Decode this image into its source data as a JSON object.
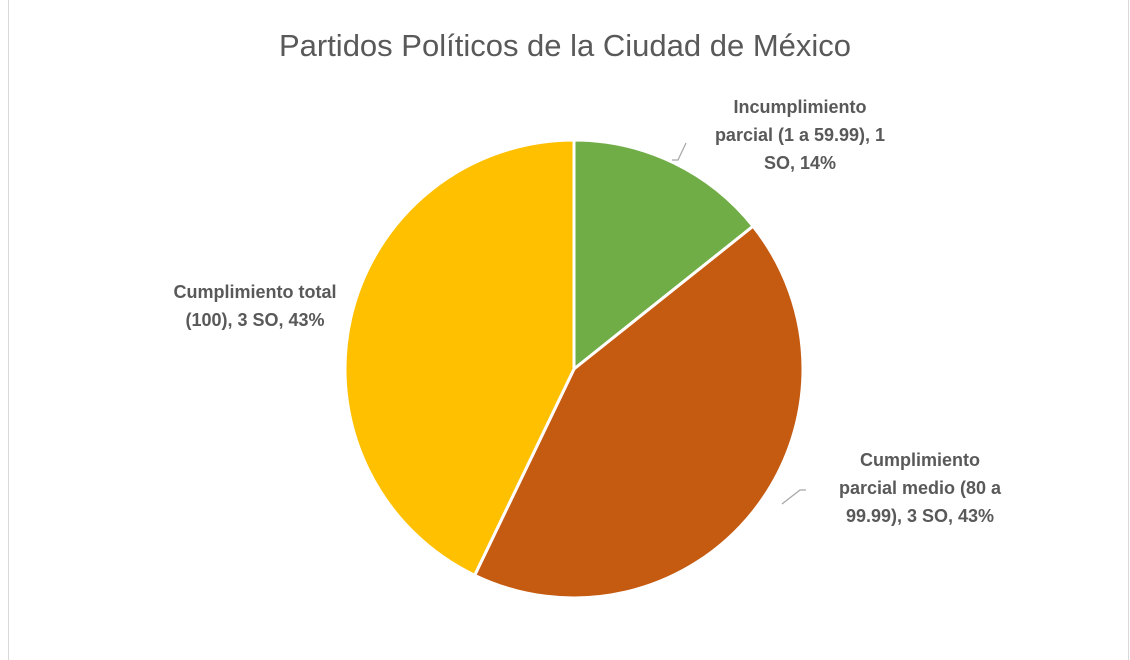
{
  "chart_data": {
    "type": "pie",
    "title": "Partidos Políticos de la Ciudad de México",
    "categories": [
      "Incumplimiento parcial (1 a 59.99)",
      "Cumplimiento parcial medio (80 a 99.99)",
      "Cumplimiento total (100)"
    ],
    "values": [
      1,
      3,
      3
    ],
    "percentages": [
      "14%",
      "43%",
      "43%"
    ],
    "colors": [
      "#70ad47",
      "#c55a11",
      "#ffc000"
    ],
    "data_labels": [
      [
        "Incumplimiento",
        "parcial (1 a 59.99), 1",
        "SO, 14%"
      ],
      [
        "Cumplimiento",
        "parcial medio (80 a",
        "99.99), 3 SO, 43%"
      ],
      [
        "Cumplimiento total",
        "(100), 3 SO, 43%"
      ]
    ],
    "legend": "none"
  }
}
